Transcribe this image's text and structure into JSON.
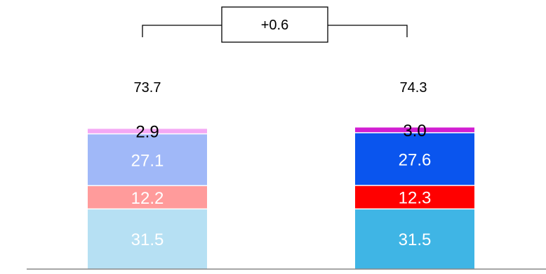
{
  "chart_data": {
    "type": "bar",
    "stacked": true,
    "categories": [
      "",
      ""
    ],
    "totals": [
      "73.7",
      "74.3"
    ],
    "difference_label": "+0.6",
    "series": [
      {
        "values": [
          31.5,
          31.5
        ],
        "labels": [
          "31.5",
          "31.5"
        ],
        "colors": [
          "#b6e0f3",
          "#3fb5e5"
        ],
        "label_color": "#ffffff"
      },
      {
        "values": [
          12.2,
          12.3
        ],
        "labels": [
          "12.2",
          "12.3"
        ],
        "colors": [
          "#ff9b9b",
          "#ff0000"
        ],
        "label_color": "#ffffff"
      },
      {
        "values": [
          27.1,
          27.6
        ],
        "labels": [
          "27.1",
          "27.6"
        ],
        "colors": [
          "#a0b8f8",
          "#0a55ee"
        ],
        "label_color": "#ffffff"
      },
      {
        "values": [
          2.9,
          3.0
        ],
        "labels": [
          "2.9",
          "3.0"
        ],
        "colors": [
          "#f4a8f4",
          "#d21ed2"
        ],
        "label_color": "#000000"
      }
    ],
    "ylim": [
      0,
      74.3
    ],
    "grid": false,
    "legend": "none",
    "axis_color": "#888888"
  }
}
